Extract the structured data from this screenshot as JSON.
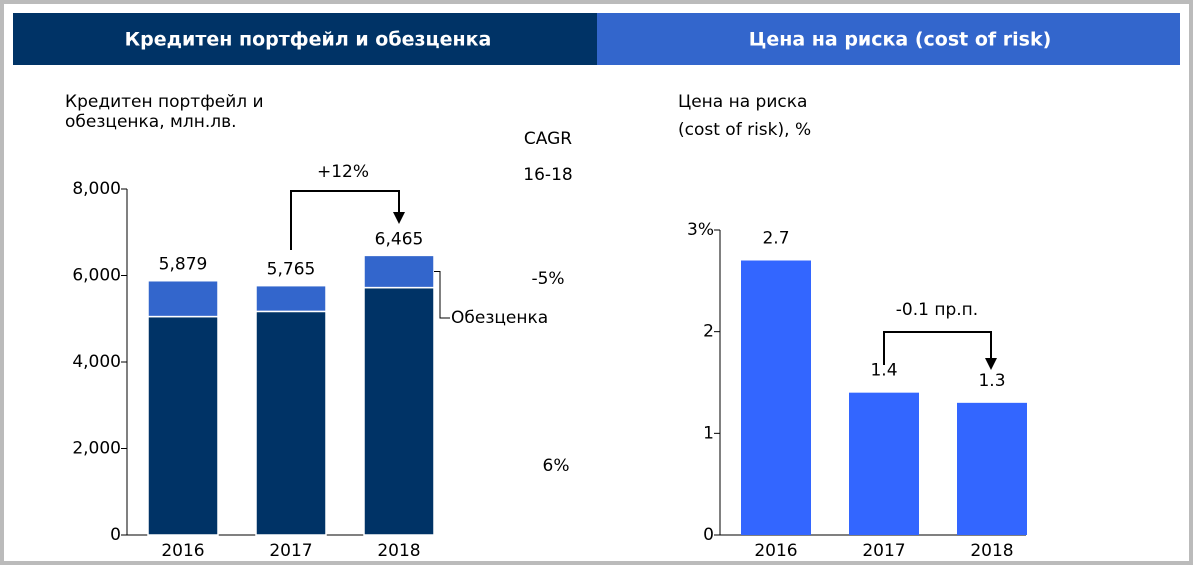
{
  "header": {
    "left": "Кредитен портфейл и обезценка",
    "right": "Цена на риска (cost of risk)"
  },
  "chart_data": [
    {
      "type": "stacked_bar",
      "y_label_lines": [
        "Кредитен портфейл и",
        "обезценка, млн.лв."
      ],
      "categories": [
        "2016",
        "2017",
        "2018"
      ],
      "series": [
        {
          "color": "#003366",
          "values": [
            5050,
            5170,
            5720
          ]
        },
        {
          "name": "Обезценка",
          "color": "#3366cc",
          "values": [
            829,
            595,
            745
          ]
        }
      ],
      "totals": [
        5879,
        5765,
        6465
      ],
      "total_labels": [
        "5,879",
        "5,765",
        "6,465"
      ],
      "ylim": [
        0,
        8000
      ],
      "yticks": [
        0,
        {
          "value": 2000,
          "label": "2,000"
        },
        {
          "value": 4000,
          "label": "4,000"
        },
        {
          "value": 6000,
          "label": "6,000"
        },
        {
          "value": 8000,
          "label": "8,000"
        }
      ],
      "annotation": "+12%",
      "cagr": {
        "title": "CAGR",
        "period": "16-18",
        "impairment": "-5%",
        "portfolio": "6%"
      }
    },
    {
      "type": "bar",
      "y_label_lines": [
        "Цена на риска",
        "(cost of risk), %"
      ],
      "categories": [
        "2016",
        "2017",
        "2018"
      ],
      "values": [
        2.7,
        1.4,
        1.3
      ],
      "color": "#3366ff",
      "ylim": [
        0,
        3
      ],
      "yticks": [
        0,
        1,
        2,
        {
          "value": 3,
          "label": "3%"
        }
      ],
      "annotation": "-0.1 пр.п."
    }
  ]
}
